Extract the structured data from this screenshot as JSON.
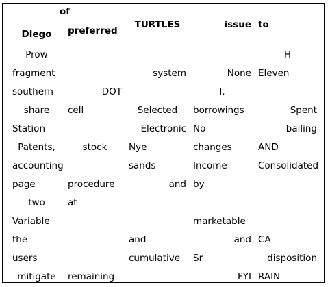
{
  "headers": [
    {
      "text": "Diego",
      "align": "center"
    },
    {
      "text": "of preferred",
      "align": "left"
    },
    {
      "text": "TURTLES",
      "align": "center"
    },
    {
      "text": "issue",
      "align": "right"
    },
    {
      "text": "to",
      "align": "left"
    }
  ],
  "rows": [
    [
      {
        "text": "Prow",
        "align": "center"
      },
      {
        "text": "",
        "align": "left"
      },
      {
        "text": "",
        "align": "left"
      },
      {
        "text": "",
        "align": "left"
      },
      {
        "text": "H",
        "align": "center"
      }
    ],
    [
      {
        "text": "fragment",
        "align": "left"
      },
      {
        "text": "",
        "align": "left"
      },
      {
        "text": "system",
        "align": "right"
      },
      {
        "text": "None",
        "align": "right"
      },
      {
        "text": "Eleven",
        "align": "left"
      }
    ],
    [
      {
        "text": "southern",
        "align": "left"
      },
      {
        "text": "DOT",
        "align": "right"
      },
      {
        "text": "",
        "align": "left"
      },
      {
        "text": "I.",
        "align": "center"
      },
      {
        "text": "",
        "align": "left"
      }
    ],
    [
      {
        "text": "share",
        "align": "center"
      },
      {
        "text": "cell",
        "align": "left"
      },
      {
        "text": "Selected",
        "align": "center"
      },
      {
        "text": "borrowings",
        "align": "left"
      },
      {
        "text": "Spent",
        "align": "right"
      }
    ],
    [
      {
        "text": "Station",
        "align": "left"
      },
      {
        "text": "",
        "align": "left"
      },
      {
        "text": "Electronic",
        "align": "right"
      },
      {
        "text": "No",
        "align": "left"
      },
      {
        "text": "bailing",
        "align": "right"
      }
    ],
    [
      {
        "text": "Patents,",
        "align": "center"
      },
      {
        "text": "stock",
        "align": "center"
      },
      {
        "text": "Nye",
        "align": "left"
      },
      {
        "text": "changes",
        "align": "left"
      },
      {
        "text": "AND",
        "align": "left"
      }
    ],
    [
      {
        "text": "accounting",
        "align": "left"
      },
      {
        "text": "",
        "align": "left"
      },
      {
        "text": "sands",
        "align": "left"
      },
      {
        "text": "Income",
        "align": "left"
      },
      {
        "text": "Consolidated",
        "align": "left"
      }
    ],
    [
      {
        "text": "page",
        "align": "left"
      },
      {
        "text": "procedure",
        "align": "left"
      },
      {
        "text": "and",
        "align": "right"
      },
      {
        "text": "by",
        "align": "left"
      },
      {
        "text": "",
        "align": "left"
      }
    ],
    [
      {
        "text": "two",
        "align": "center"
      },
      {
        "text": "at",
        "align": "left"
      },
      {
        "text": "",
        "align": "left"
      },
      {
        "text": "",
        "align": "left"
      },
      {
        "text": "",
        "align": "left"
      }
    ],
    [
      {
        "text": "Variable",
        "align": "left"
      },
      {
        "text": "",
        "align": "left"
      },
      {
        "text": "",
        "align": "left"
      },
      {
        "text": "marketable",
        "align": "left"
      },
      {
        "text": "",
        "align": "left"
      }
    ],
    [
      {
        "text": "the",
        "align": "left"
      },
      {
        "text": "",
        "align": "left"
      },
      {
        "text": "and",
        "align": "left"
      },
      {
        "text": "and",
        "align": "right"
      },
      {
        "text": "CA",
        "align": "left"
      }
    ],
    [
      {
        "text": "users",
        "align": "left"
      },
      {
        "text": "",
        "align": "left"
      },
      {
        "text": "cumulative",
        "align": "left"
      },
      {
        "text": "Sr",
        "align": "left"
      },
      {
        "text": "disposition",
        "align": "right"
      }
    ],
    [
      {
        "text": "mitigate",
        "align": "center"
      },
      {
        "text": "remaining",
        "align": "left"
      },
      {
        "text": "",
        "align": "left"
      },
      {
        "text": "FYI",
        "align": "right"
      },
      {
        "text": "RAIN",
        "align": "left"
      }
    ]
  ]
}
